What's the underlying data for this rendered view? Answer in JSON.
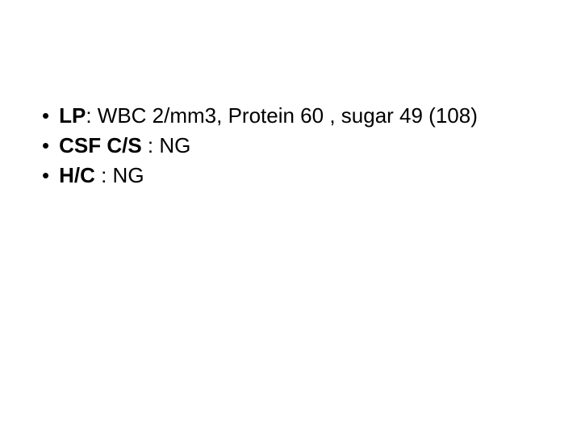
{
  "slide": {
    "background_color": "#ffffff",
    "text_color": "#000000",
    "font_size_pt": 20,
    "font_family": "Arial",
    "bullets": [
      {
        "label": "LP",
        "value": ": WBC 2/mm3, Protein 60 , sugar 49 (108)"
      },
      {
        "label": "CSF C/S",
        "value": " : NG"
      },
      {
        "label": "H/C",
        "value": "  : NG"
      }
    ]
  }
}
